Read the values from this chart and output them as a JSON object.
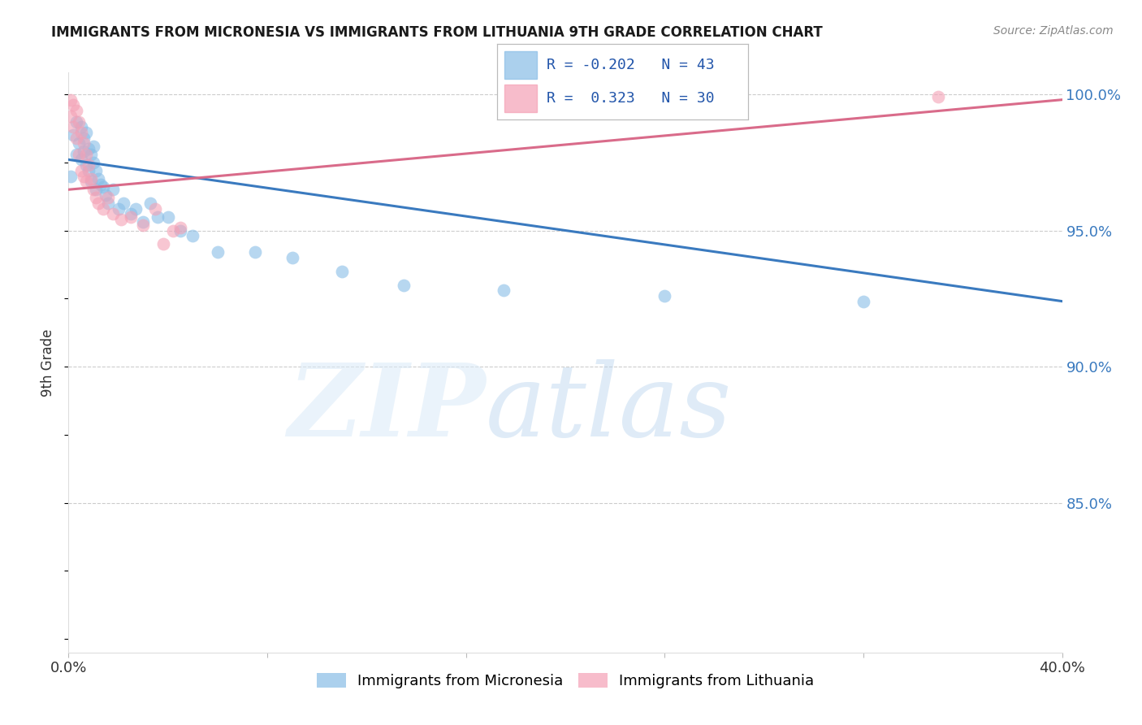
{
  "title": "IMMIGRANTS FROM MICRONESIA VS IMMIGRANTS FROM LITHUANIA 9TH GRADE CORRELATION CHART",
  "source": "Source: ZipAtlas.com",
  "ylabel": "9th Grade",
  "xlim": [
    0.0,
    0.4
  ],
  "ylim": [
    0.795,
    1.008
  ],
  "yticks": [
    0.85,
    0.9,
    0.95,
    1.0
  ],
  "ytick_labels": [
    "85.0%",
    "90.0%",
    "95.0%",
    "100.0%"
  ],
  "legend_r_micronesia": "-0.202",
  "legend_n_micronesia": "43",
  "legend_r_lithuania": " 0.323",
  "legend_n_lithuania": "30",
  "micronesia_color": "#88bde6",
  "lithuania_color": "#f4a0b5",
  "micronesia_line_color": "#3a7abf",
  "lithuania_line_color": "#d96b8a",
  "micronesia_x": [
    0.001,
    0.002,
    0.003,
    0.003,
    0.004,
    0.005,
    0.005,
    0.006,
    0.006,
    0.007,
    0.007,
    0.008,
    0.008,
    0.009,
    0.009,
    0.01,
    0.01,
    0.011,
    0.011,
    0.012,
    0.013,
    0.014,
    0.015,
    0.016,
    0.018,
    0.02,
    0.022,
    0.025,
    0.027,
    0.03,
    0.033,
    0.036,
    0.04,
    0.045,
    0.05,
    0.06,
    0.075,
    0.09,
    0.11,
    0.135,
    0.175,
    0.24,
    0.32
  ],
  "micronesia_y": [
    0.97,
    0.985,
    0.978,
    0.99,
    0.982,
    0.988,
    0.976,
    0.984,
    0.979,
    0.986,
    0.974,
    0.98,
    0.972,
    0.978,
    0.968,
    0.981,
    0.975,
    0.972,
    0.965,
    0.969,
    0.967,
    0.966,
    0.963,
    0.96,
    0.965,
    0.958,
    0.96,
    0.956,
    0.958,
    0.953,
    0.96,
    0.955,
    0.955,
    0.95,
    0.948,
    0.942,
    0.942,
    0.94,
    0.935,
    0.93,
    0.928,
    0.926,
    0.924
  ],
  "lithuania_x": [
    0.001,
    0.001,
    0.002,
    0.002,
    0.003,
    0.003,
    0.004,
    0.004,
    0.005,
    0.005,
    0.006,
    0.006,
    0.007,
    0.007,
    0.008,
    0.009,
    0.01,
    0.011,
    0.012,
    0.014,
    0.016,
    0.018,
    0.021,
    0.025,
    0.03,
    0.035,
    0.038,
    0.042,
    0.35,
    0.045
  ],
  "lithuania_y": [
    0.998,
    0.992,
    0.996,
    0.988,
    0.994,
    0.984,
    0.99,
    0.978,
    0.986,
    0.972,
    0.982,
    0.97,
    0.978,
    0.968,
    0.974,
    0.969,
    0.965,
    0.962,
    0.96,
    0.958,
    0.962,
    0.956,
    0.954,
    0.955,
    0.952,
    0.958,
    0.945,
    0.95,
    0.999,
    0.951
  ],
  "mic_line_x0": 0.0,
  "mic_line_y0": 0.976,
  "mic_line_x1": 0.4,
  "mic_line_y1": 0.924,
  "lit_line_x0": 0.0,
  "lit_line_y0": 0.965,
  "lit_line_x1": 0.4,
  "lit_line_y1": 0.998
}
